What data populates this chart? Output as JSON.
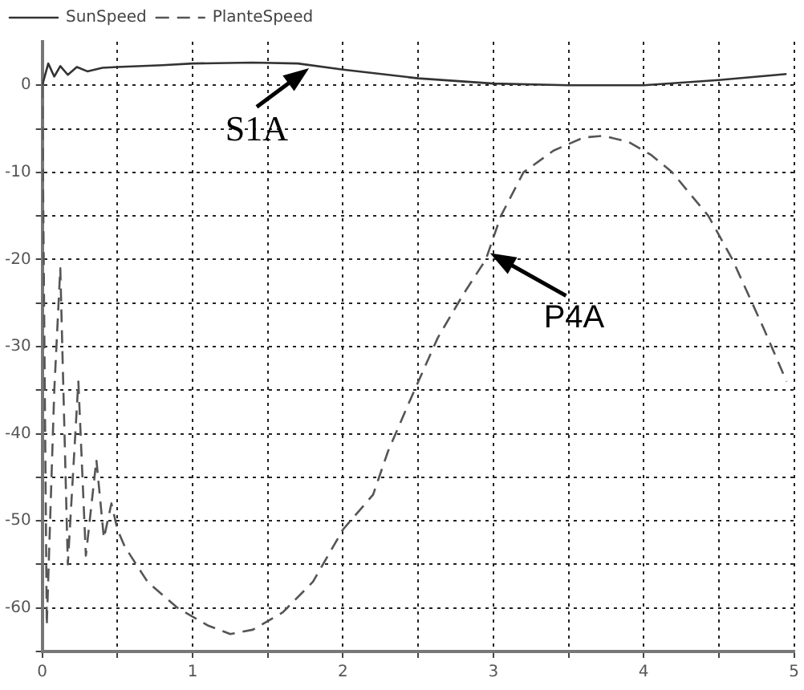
{
  "chart_data": {
    "type": "line",
    "legend": "top left",
    "grid": true,
    "marker": "none",
    "xlim": [
      0,
      5
    ],
    "ylim": [
      -65,
      5
    ],
    "xticks": [
      0,
      {
        "value": 0.5,
        "label": null
      },
      1,
      {
        "value": 1.5,
        "label": null
      },
      2,
      {
        "value": 2.5,
        "label": null
      },
      3,
      {
        "value": 3.5,
        "label": null
      },
      4,
      {
        "value": 4.5,
        "label": null
      },
      5
    ],
    "yticks": [
      {
        "value": -65,
        "label": null
      },
      -60,
      {
        "value": -55,
        "label": null
      },
      -50,
      {
        "value": -45,
        "label": null
      },
      -40,
      {
        "value": -35,
        "label": null
      },
      -30,
      {
        "value": -25,
        "label": null
      },
      -20,
      {
        "value": -15,
        "label": null
      },
      -10,
      {
        "value": -5,
        "label": null
      },
      0
    ],
    "annotations": [
      {
        "text": "S1A",
        "x": 1.8,
        "y": 2.3
      },
      {
        "text": "P4A",
        "x": 2.95,
        "y": -19
      }
    ],
    "series": [
      {
        "name": "SunSpeed",
        "color": "#333333",
        "line_style": "solid",
        "x": [
          0,
          0.04,
          0.08,
          0.12,
          0.17,
          0.23,
          0.3,
          0.4,
          0.5,
          0.8,
          1.0,
          1.4,
          1.7,
          2.0,
          2.5,
          3.0,
          3.5,
          4.0,
          4.5,
          4.95
        ],
        "values": [
          0,
          2.5,
          1,
          2.2,
          1.2,
          2.1,
          1.6,
          2,
          2.1,
          2.3,
          2.5,
          2.6,
          2.5,
          1.8,
          0.8,
          0.2,
          0,
          0,
          0.6,
          1.3
        ]
      },
      {
        "name": "PlanteSpeed",
        "color": "#555555",
        "line_style": "dashed",
        "x": [
          0,
          0.03,
          0.08,
          0.12,
          0.17,
          0.24,
          0.29,
          0.36,
          0.41,
          0.46,
          0.5,
          0.55,
          0.7,
          0.9,
          1.1,
          1.25,
          1.4,
          1.6,
          1.8,
          2.0,
          2.2,
          2.3,
          2.45,
          2.63,
          2.8,
          2.95,
          3.05,
          3.2,
          3.4,
          3.6,
          3.73,
          3.9,
          4.05,
          4.19,
          4.43,
          4.59,
          4.8,
          4.95
        ],
        "values": [
          0,
          -62,
          -35,
          -21,
          -55,
          -34,
          -54,
          -43,
          -52,
          -48,
          -51,
          -53,
          -57,
          -60,
          -62,
          -63,
          -62.5,
          -60.5,
          -57,
          -51,
          -47,
          -42,
          -36,
          -29,
          -24,
          -20,
          -15,
          -10,
          -7.5,
          -6,
          -5.8,
          -6.5,
          -8,
          -10,
          -15,
          -20,
          -28,
          -34
        ]
      }
    ]
  }
}
